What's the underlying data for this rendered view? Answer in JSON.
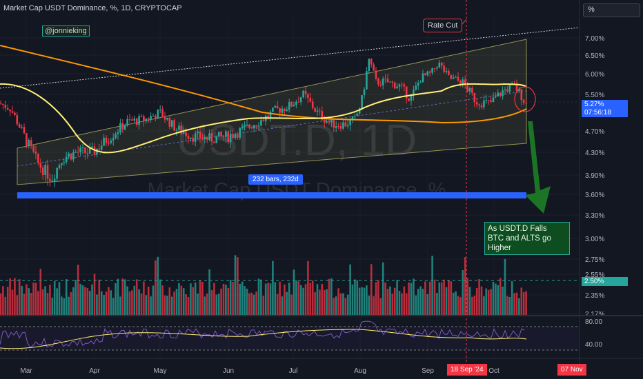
{
  "header": {
    "title": "Market Cap USDT Dominance, %, 1D, CRYPTOCAP"
  },
  "controls": {
    "scale_button": "%"
  },
  "annotations": {
    "author": "@jonnieking",
    "rate_cut": "Rate Cut",
    "bars_range": "232 bars, 232d",
    "note_line1": "As USDT.D Falls",
    "note_line2": "BTC and ALTS go Higher"
  },
  "watermark": {
    "symbol": "USDT.D, 1D",
    "name": "Market Cap USDT Dominance, %"
  },
  "price_axis": {
    "ticks": [
      "7.00%",
      "6.50%",
      "6.00%",
      "5.50%",
      "4.70%",
      "4.30%",
      "3.90%",
      "3.60%",
      "3.30%",
      "3.00%",
      "2.75%",
      "2.55%",
      "2.35%",
      "2.17%"
    ],
    "current_price": "5.27%",
    "countdown": "07:56:18",
    "volume_label": "2.50%"
  },
  "rsi_axis": {
    "ticks": [
      "80.00",
      "40.00"
    ]
  },
  "time_axis": {
    "labels": [
      "Mar",
      "Apr",
      "May",
      "Jun",
      "Jul",
      "Aug",
      "Sep",
      "Oct"
    ],
    "rate_cut_date": "18 Sep '24",
    "end_date": "07 Nov"
  },
  "colors": {
    "background": "#131722",
    "up": "#26a69a",
    "down": "#f23645",
    "ma_fast": "#fff176",
    "ma_slow": "#ff9800",
    "channel": "#c9c46a",
    "support": "#2962ff",
    "arrow": "#1b7a25",
    "rsi": "#7e57c2"
  },
  "chart_data": {
    "type": "candlestick",
    "symbol": "USDT.D",
    "interval": "1D",
    "ylim": [
      2.17,
      7.2
    ],
    "close_approx": [
      {
        "x": "Mar",
        "y": 4.6
      },
      {
        "x": "Mar",
        "y": 4.1
      },
      {
        "x": "Mar",
        "y": 3.9
      },
      {
        "x": "Apr",
        "y": 4.2
      },
      {
        "x": "Apr",
        "y": 4.7
      },
      {
        "x": "May",
        "y": 5.0
      },
      {
        "x": "May",
        "y": 4.6
      },
      {
        "x": "Jun",
        "y": 4.5
      },
      {
        "x": "Jun",
        "y": 4.7
      },
      {
        "x": "Jul",
        "y": 5.1
      },
      {
        "x": "Jul",
        "y": 4.9
      },
      {
        "x": "Aug",
        "y": 5.7
      },
      {
        "x": "Aug",
        "y": 5.6
      },
      {
        "x": "Sep",
        "y": 6.2
      },
      {
        "x": "Sep",
        "y": 5.6
      },
      {
        "x": "Oct",
        "y": 5.5
      },
      {
        "x": "Oct",
        "y": 5.27
      }
    ],
    "current_price": 5.27,
    "indicators": [
      "Volume",
      "RSI"
    ]
  }
}
